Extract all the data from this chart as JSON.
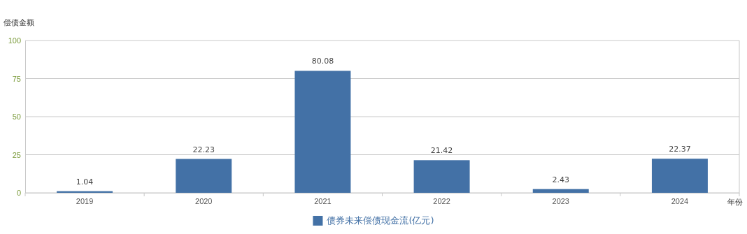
{
  "chart_data": {
    "type": "bar",
    "ylabel": "偿债金额",
    "xlabel": "年份",
    "categories": [
      "2019",
      "2020",
      "2021",
      "2022",
      "2023",
      "2024"
    ],
    "series": [
      {
        "name": "债券未来偿债现金流(亿元)",
        "color": "#4371a6",
        "values": [
          1.04,
          22.23,
          80.08,
          21.42,
          2.43,
          22.37
        ]
      }
    ],
    "ylim": [
      0,
      100
    ],
    "yticks": [
      0,
      25,
      50,
      75,
      100
    ],
    "grid": "y",
    "legend": "bottom",
    "data_labels": true
  }
}
